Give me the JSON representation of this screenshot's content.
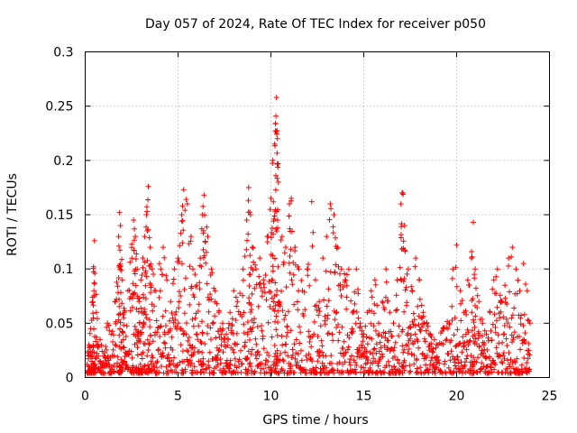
{
  "chart_data": {
    "type": "scatter",
    "title": "Day 057 of 2024, Rate Of TEC Index for receiver p050",
    "xlabel": "GPS time / hours",
    "ylabel": "ROTI / TECUs",
    "xlim": [
      0,
      25
    ],
    "ylim": [
      0,
      0.3
    ],
    "x_ticks": [
      0,
      5,
      10,
      15,
      20,
      25
    ],
    "x_tick_labels": [
      "0",
      "5",
      "10",
      "15",
      "20",
      "25"
    ],
    "y_ticks": [
      0,
      0.05,
      0.1,
      0.15,
      0.2,
      0.25,
      0.3
    ],
    "y_tick_labels": [
      "0",
      "0.05",
      "0.1",
      "0.15",
      "0.2",
      "0.25",
      "0.3"
    ],
    "grid": true,
    "marker": "+",
    "marker_color": "#ff0000",
    "series": [
      {
        "name": "ROTI",
        "note": "dense point cloud spanning 0-24 h, mostly below 0.05 TECU/min, peaks near 10.3 h",
        "points": [
          [
            0.1,
            0.012
          ],
          [
            0.2,
            0.03
          ],
          [
            0.3,
            0.045
          ],
          [
            0.4,
            0.074
          ],
          [
            0.45,
            0.102
          ],
          [
            0.5,
            0.126
          ],
          [
            0.6,
            0.06
          ],
          [
            0.8,
            0.035
          ],
          [
            1.0,
            0.02
          ],
          [
            1.2,
            0.05
          ],
          [
            1.4,
            0.04
          ],
          [
            1.6,
            0.07
          ],
          [
            1.8,
            0.13
          ],
          [
            1.85,
            0.152
          ],
          [
            1.9,
            0.14
          ],
          [
            2.0,
            0.09
          ],
          [
            2.1,
            0.06
          ],
          [
            2.3,
            0.08
          ],
          [
            2.5,
            0.12
          ],
          [
            2.6,
            0.145
          ],
          [
            2.7,
            0.13
          ],
          [
            2.8,
            0.1
          ],
          [
            2.9,
            0.07
          ],
          [
            3.0,
            0.09
          ],
          [
            3.1,
            0.11
          ],
          [
            3.2,
            0.13
          ],
          [
            3.3,
            0.15
          ],
          [
            3.4,
            0.176
          ],
          [
            3.5,
            0.12
          ],
          [
            3.6,
            0.1
          ],
          [
            3.8,
            0.08
          ],
          [
            4.0,
            0.105
          ],
          [
            4.2,
            0.12
          ],
          [
            4.4,
            0.09
          ],
          [
            4.6,
            0.07
          ],
          [
            4.8,
            0.1
          ],
          [
            5.0,
            0.11
          ],
          [
            5.2,
            0.15
          ],
          [
            5.3,
            0.173
          ],
          [
            5.5,
            0.16
          ],
          [
            5.7,
            0.13
          ],
          [
            5.8,
            0.1
          ],
          [
            6.0,
            0.085
          ],
          [
            6.2,
            0.11
          ],
          [
            6.3,
            0.15
          ],
          [
            6.4,
            0.168
          ],
          [
            6.6,
            0.13
          ],
          [
            6.8,
            0.1
          ],
          [
            7.0,
            0.08
          ],
          [
            7.2,
            0.06
          ],
          [
            7.4,
            0.05
          ],
          [
            7.6,
            0.04
          ],
          [
            7.8,
            0.06
          ],
          [
            8.0,
            0.08
          ],
          [
            8.2,
            0.07
          ],
          [
            8.5,
            0.1
          ],
          [
            8.7,
            0.145
          ],
          [
            8.8,
            0.175
          ],
          [
            8.9,
            0.15
          ],
          [
            9.0,
            0.12
          ],
          [
            9.2,
            0.1
          ],
          [
            9.4,
            0.11
          ],
          [
            9.6,
            0.09
          ],
          [
            9.8,
            0.13
          ],
          [
            10.0,
            0.165
          ],
          [
            10.1,
            0.2
          ],
          [
            10.2,
            0.215
          ],
          [
            10.25,
            0.234
          ],
          [
            10.3,
            0.258
          ],
          [
            10.35,
            0.22
          ],
          [
            10.4,
            0.18
          ],
          [
            10.6,
            0.13
          ],
          [
            10.8,
            0.12
          ],
          [
            11.0,
            0.16
          ],
          [
            11.1,
            0.165
          ],
          [
            11.3,
            0.12
          ],
          [
            11.5,
            0.1
          ],
          [
            11.7,
            0.08
          ],
          [
            12.0,
            0.1
          ],
          [
            12.2,
            0.162
          ],
          [
            12.4,
            0.09
          ],
          [
            12.6,
            0.07
          ],
          [
            12.8,
            0.11
          ],
          [
            13.0,
            0.13
          ],
          [
            13.2,
            0.16
          ],
          [
            13.4,
            0.15
          ],
          [
            13.6,
            0.12
          ],
          [
            13.8,
            0.1
          ],
          [
            14.0,
            0.09
          ],
          [
            14.2,
            0.1
          ],
          [
            14.4,
            0.06
          ],
          [
            14.6,
            0.1
          ],
          [
            14.8,
            0.05
          ],
          [
            15.0,
            0.04
          ],
          [
            15.2,
            0.06
          ],
          [
            15.4,
            0.08
          ],
          [
            15.6,
            0.09
          ],
          [
            15.8,
            0.05
          ],
          [
            16.0,
            0.07
          ],
          [
            16.2,
            0.1
          ],
          [
            16.4,
            0.06
          ],
          [
            16.6,
            0.05
          ],
          [
            16.8,
            0.09
          ],
          [
            17.0,
            0.16
          ],
          [
            17.1,
            0.17
          ],
          [
            17.2,
            0.14
          ],
          [
            17.4,
            0.1
          ],
          [
            17.6,
            0.08
          ],
          [
            17.8,
            0.11
          ],
          [
            18.0,
            0.09
          ],
          [
            18.2,
            0.06
          ],
          [
            18.4,
            0.05
          ],
          [
            18.6,
            0.04
          ],
          [
            18.8,
            0.035
          ],
          [
            19.0,
            0.03
          ],
          [
            19.3,
            0.045
          ],
          [
            19.6,
            0.05
          ],
          [
            19.8,
            0.1
          ],
          [
            20.0,
            0.122
          ],
          [
            20.2,
            0.08
          ],
          [
            20.4,
            0.06
          ],
          [
            20.6,
            0.09
          ],
          [
            20.8,
            0.11
          ],
          [
            20.9,
            0.143
          ],
          [
            21.0,
            0.1
          ],
          [
            21.2,
            0.07
          ],
          [
            21.4,
            0.05
          ],
          [
            21.6,
            0.04
          ],
          [
            21.8,
            0.06
          ],
          [
            22.0,
            0.09
          ],
          [
            22.2,
            0.1
          ],
          [
            22.4,
            0.07
          ],
          [
            22.6,
            0.085
          ],
          [
            22.8,
            0.11
          ],
          [
            23.0,
            0.12
          ],
          [
            23.2,
            0.1
          ],
          [
            23.4,
            0.08
          ],
          [
            23.6,
            0.105
          ],
          [
            23.8,
            0.08
          ],
          [
            23.95,
            0.05
          ]
        ]
      }
    ]
  }
}
